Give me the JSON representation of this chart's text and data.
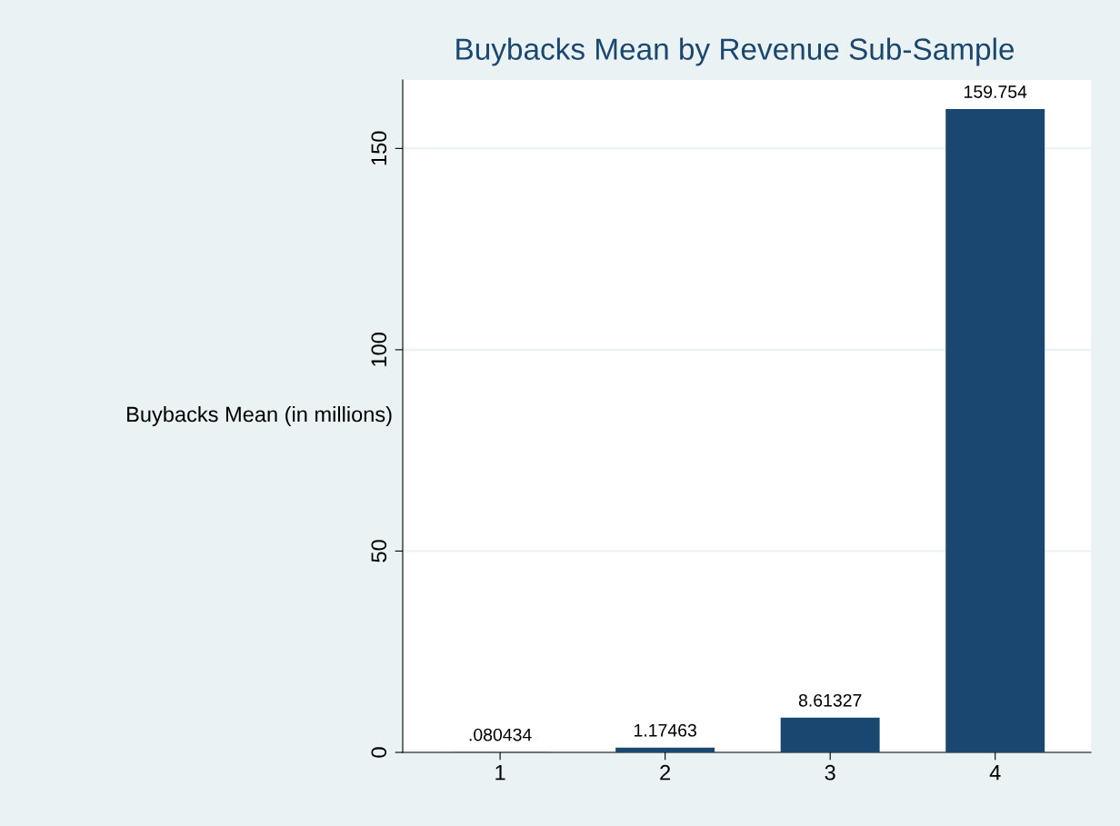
{
  "chart_data": {
    "type": "bar",
    "title": "Buybacks Mean by Revenue Sub-Sample",
    "ylabel": "Buybacks Mean (in millions)",
    "categories": [
      "1",
      "2",
      "3",
      "4"
    ],
    "values": [
      0.080434,
      1.17463,
      8.61327,
      159.754
    ],
    "value_labels": [
      ".080434",
      "1.17463",
      "8.61327",
      "159.754"
    ],
    "color": "#1a476f",
    "ylim": [
      0,
      167
    ],
    "yticks": [
      0,
      50,
      100,
      150
    ],
    "grid": "y"
  }
}
